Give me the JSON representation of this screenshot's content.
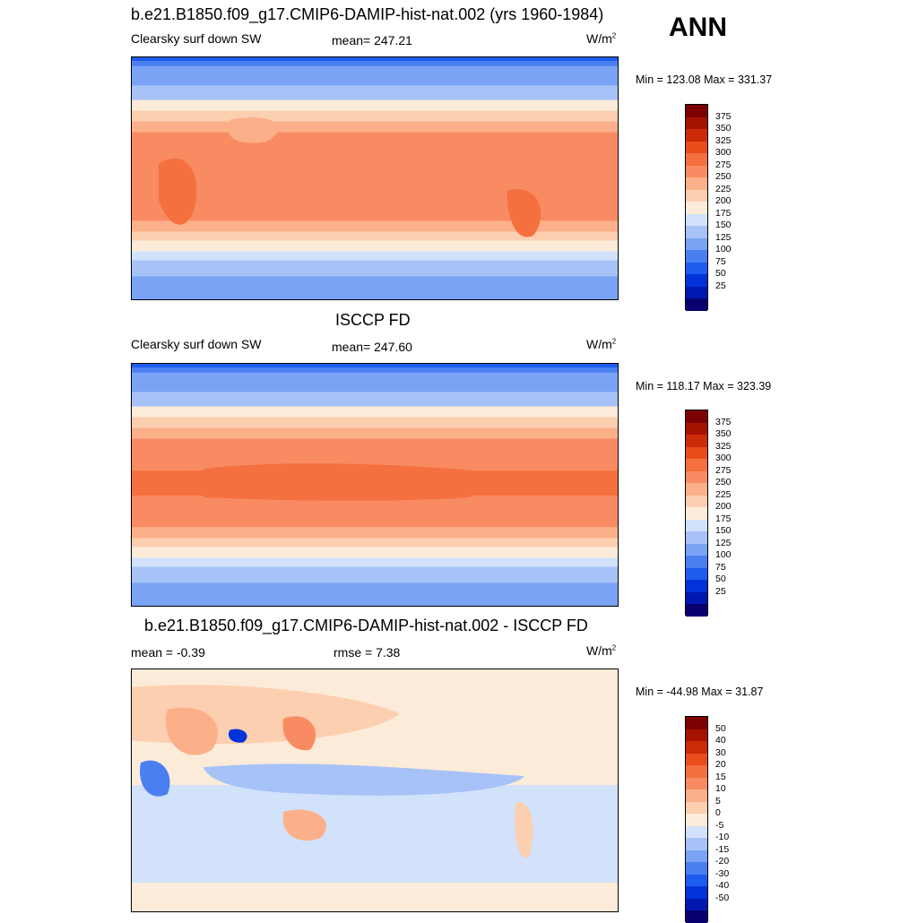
{
  "season": "ANN",
  "palette_abs": [
    "#08006e",
    "#0018b0",
    "#0033d9",
    "#1e5cf0",
    "#4a7ff2",
    "#7aa3f5",
    "#a6c2f7",
    "#d2e2fa",
    "#fdebd9",
    "#fccfb0",
    "#fbb08a",
    "#f98b62",
    "#f4703e",
    "#e94d1b",
    "#cc2b07",
    "#a51200",
    "#7d0000"
  ],
  "palette_diff": [
    "#08006e",
    "#0018b0",
    "#0033d9",
    "#1e5cf0",
    "#4a7ff2",
    "#7aa3f5",
    "#a6c2f7",
    "#d2e2fa",
    "#fdebd9",
    "#fccfb0",
    "#fbb08a",
    "#f98b62",
    "#f4703e",
    "#e94d1b",
    "#cc2b07",
    "#a51200",
    "#7d0000"
  ],
  "chart_data": [
    {
      "type": "heatmap",
      "title": "b.e21.B1850.f09_g17.CMIP6-DAMIP-hist-nat.002 (yrs 1960-1984)",
      "variable": "Clearsky surf down SW",
      "mean_label": "mean= 247.21",
      "units": "W/m",
      "units_exp": "2",
      "minmax": "Min = 123.08 Max = 331.37",
      "colorbar_levels": [
        "375",
        "350",
        "325",
        "300",
        "275",
        "250",
        "225",
        "200",
        "175",
        "150",
        "125",
        "100",
        "75",
        "50",
        "25"
      ]
    },
    {
      "type": "heatmap",
      "title": "ISCCP FD",
      "variable": "Clearsky surf down SW",
      "mean_label": "mean= 247.60",
      "units": "W/m",
      "units_exp": "2",
      "minmax": "Min = 118.17 Max = 323.39",
      "colorbar_levels": [
        "375",
        "350",
        "325",
        "300",
        "275",
        "250",
        "225",
        "200",
        "175",
        "150",
        "125",
        "100",
        "75",
        "50",
        "25"
      ]
    },
    {
      "type": "heatmap",
      "title": "b.e21.B1850.f09_g17.CMIP6-DAMIP-hist-nat.002 - ISCCP FD",
      "mean_label": "mean =  -0.39",
      "rmse_label": "rmse =   7.38",
      "units": "W/m",
      "units_exp": "2",
      "minmax": "Min = -44.98 Max =  31.87",
      "colorbar_levels": [
        "50",
        "40",
        "30",
        "20",
        "15",
        "10",
        "5",
        "0",
        "-5",
        "-10",
        "-15",
        "-20",
        "-30",
        "-40",
        "-50"
      ]
    }
  ]
}
